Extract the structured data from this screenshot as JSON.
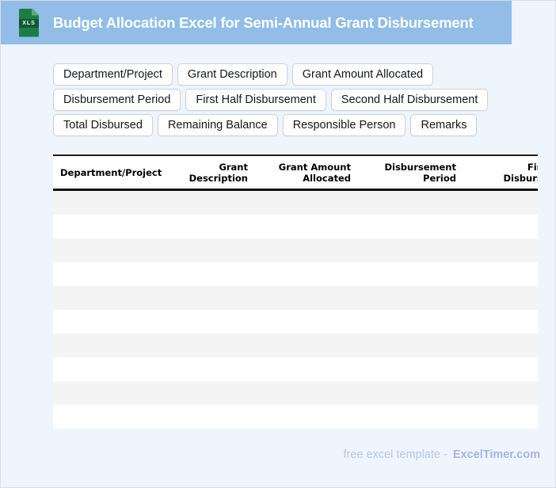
{
  "header": {
    "title": "Budget Allocation Excel for Semi-Annual Grant Disbursement",
    "file_icon_label": "XLS",
    "bar_color": "#91BDE7",
    "icon_color": "#1B7D44",
    "icon_band_color": "#0F5A2F"
  },
  "chips": {
    "rows": [
      [
        "Department/Project",
        "Grant Description",
        "Grant Amount Allocated"
      ],
      [
        "Disbursement Period",
        "First Half Disbursement",
        "Second Half Disbursement"
      ],
      [
        "Total Disbursed",
        "Remaining Balance",
        "Responsible Person",
        "Remarks"
      ]
    ]
  },
  "table": {
    "columns": [
      "Department/Project",
      "Grant Description",
      "Grant Amount Allocated",
      "Disbursement Period",
      "First Half Disbursement"
    ],
    "note_last_column_clipped": true,
    "row_count": 10,
    "rows_empty": true,
    "stripe_color": "#F5F4F4",
    "header_border_color": "#121212"
  },
  "footer": {
    "text": "free excel template -",
    "brand": "ExcelTimer.com",
    "text_color": "#B6C4EC",
    "brand_color": "#A5B3E6"
  },
  "page": {
    "background_color": "#EFF5FD"
  }
}
